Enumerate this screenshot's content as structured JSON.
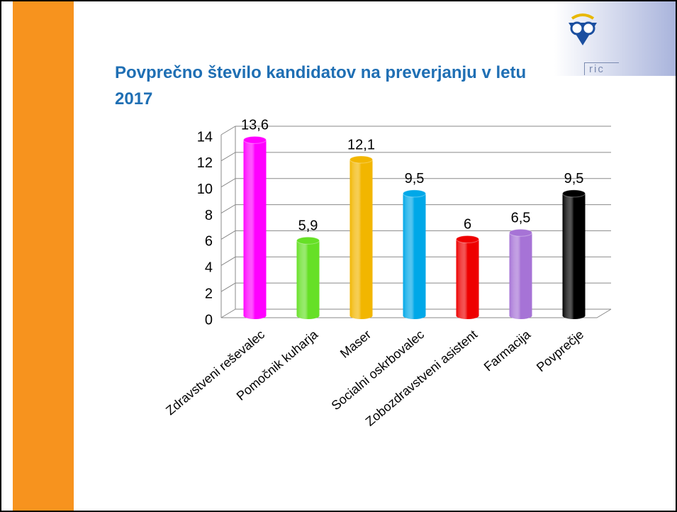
{
  "logo_text": "ric",
  "chart_data": {
    "type": "bar",
    "title": "Povprečno število kandidatov na preverjanju v letu 2017",
    "categories": [
      "Zdravstveni reševalec",
      "Pomočnik kuharja",
      "Maser",
      "Socialni oskrbovalec",
      "Zobozdravstveni asistent",
      "Farmacija",
      "Povprečje"
    ],
    "values": [
      13.6,
      5.9,
      12.1,
      9.5,
      6,
      6.5,
      9.5
    ],
    "value_labels": [
      "13,6",
      "5,9",
      "12,1",
      "9,5",
      "6",
      "6,5",
      "9,5"
    ],
    "colors": [
      "#ff00ff",
      "#66e026",
      "#f2b600",
      "#00a8e8",
      "#ee0000",
      "#a673d6",
      "#000000"
    ],
    "ylim": [
      0,
      14
    ],
    "yticks": [
      0,
      2,
      4,
      6,
      8,
      10,
      12,
      14
    ],
    "grid": true
  }
}
